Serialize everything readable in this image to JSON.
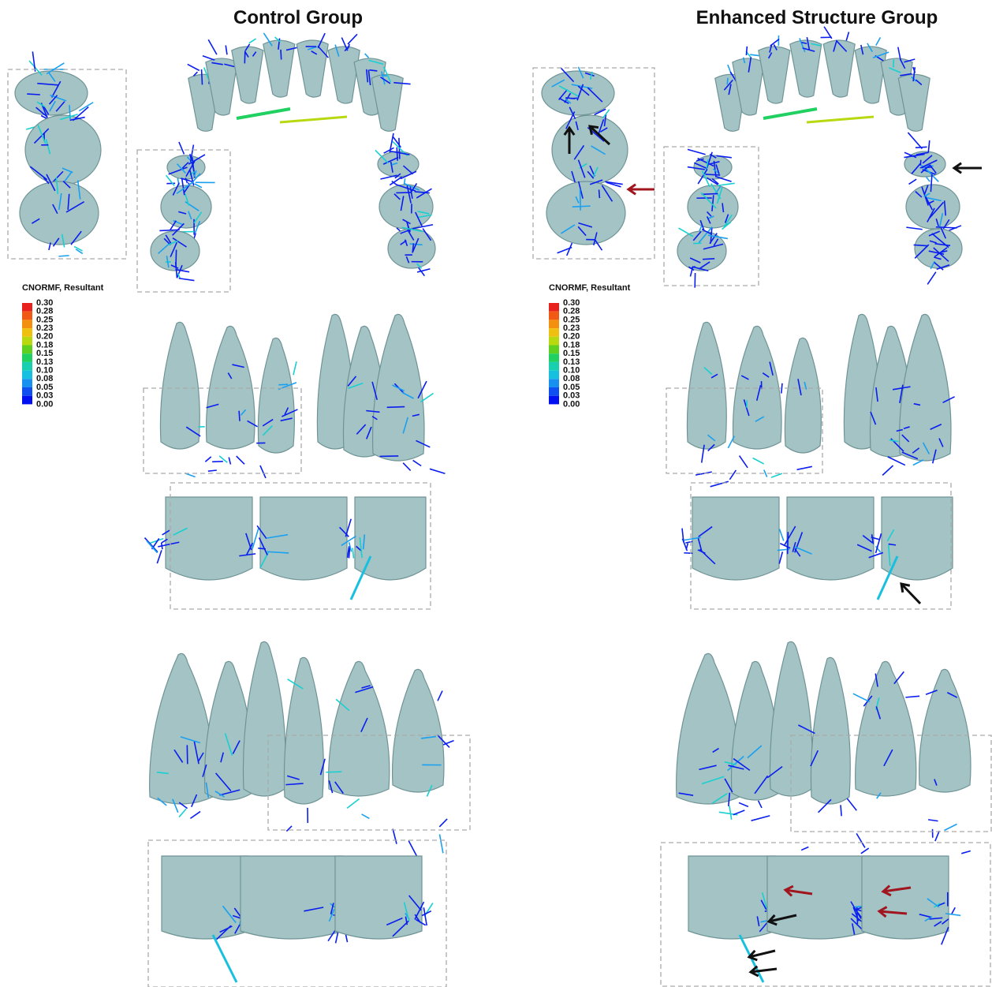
{
  "panels": [
    {
      "title": "Control Group",
      "legend": {
        "title": "CNORMF, Resultant",
        "ticks": [
          "0.30",
          "0.28",
          "0.25",
          "0.23",
          "0.20",
          "0.18",
          "0.15",
          "0.13",
          "0.10",
          "0.08",
          "0.05",
          "0.03",
          "0.00"
        ]
      }
    },
    {
      "title": "Enhanced Structure Group",
      "legend": {
        "title": "CNORMF, Resultant",
        "ticks": [
          "0.30",
          "0.28",
          "0.25",
          "0.23",
          "0.20",
          "0.18",
          "0.15",
          "0.13",
          "0.10",
          "0.08",
          "0.05",
          "0.03",
          "0.00"
        ]
      }
    }
  ],
  "legend_colors": [
    "#e8211d",
    "#f05a14",
    "#f4900f",
    "#f0c010",
    "#b8d810",
    "#60d020",
    "#20d060",
    "#18d0b0",
    "#18c0e0",
    "#1890f0",
    "#1050f0",
    "#0010f0"
  ]
}
